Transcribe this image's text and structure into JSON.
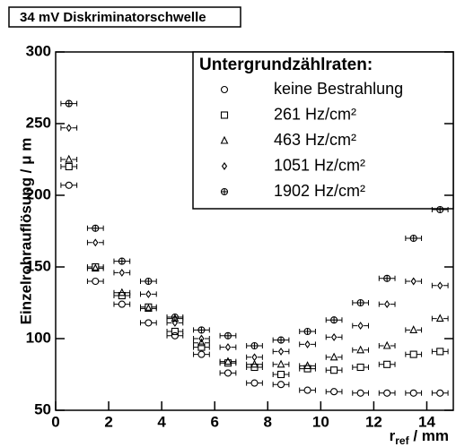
{
  "chart_data": {
    "type": "scatter",
    "header": "34 mV Diskriminatorschwelle",
    "y_label": "Einzelrohrauflösung / μ m",
    "x_label": {
      "symbol": "r",
      "subscript": "ref",
      "unit": " / mm"
    },
    "legend_title": "Untergrundzählraten:",
    "x": [
      0.5,
      1.5,
      2.5,
      3.5,
      4.5,
      5.5,
      6.5,
      7.5,
      8.5,
      9.5,
      10.5,
      11.5,
      12.5,
      13.5,
      14.5
    ],
    "x_error": 0.3,
    "series": [
      {
        "name": "keine Bestrahlung",
        "marker": "circle",
        "color": "#000000",
        "values": [
          207,
          140,
          124,
          111,
          102,
          89,
          76,
          69,
          68,
          64,
          63,
          62,
          62,
          62,
          62
        ]
      },
      {
        "name": "261 Hz/cm²",
        "marker": "square",
        "color": "#000000",
        "values": [
          220,
          150,
          130,
          122,
          105,
          94,
          83,
          80,
          75,
          79,
          78,
          80,
          82,
          89,
          91
        ]
      },
      {
        "name": "463 Hz/cm²",
        "marker": "triangle",
        "color": "#000000",
        "values": [
          225,
          149,
          132,
          121,
          114,
          97,
          84,
          82,
          82,
          81,
          87,
          92,
          95,
          106,
          114
        ]
      },
      {
        "name": "1051 Hz/cm²",
        "marker": "diamond",
        "color": "#000000",
        "values": [
          247,
          167,
          146,
          131,
          111,
          100,
          94,
          87,
          91,
          96,
          101,
          109,
          124,
          140,
          137
        ]
      },
      {
        "name": "1902 Hz/cm²",
        "marker": "circle-plus",
        "color": "#000000",
        "values": [
          264,
          177,
          154,
          140,
          115,
          106,
          102,
          95,
          99,
          105,
          113,
          125,
          142,
          170,
          190
        ]
      }
    ],
    "xlim": [
      0,
      15
    ],
    "ylim": [
      50,
      300
    ],
    "xticks": [
      0,
      2,
      4,
      6,
      8,
      10,
      12,
      14
    ],
    "yticks": [
      50,
      100,
      150,
      200,
      250,
      300
    ],
    "legend": "top-right"
  }
}
